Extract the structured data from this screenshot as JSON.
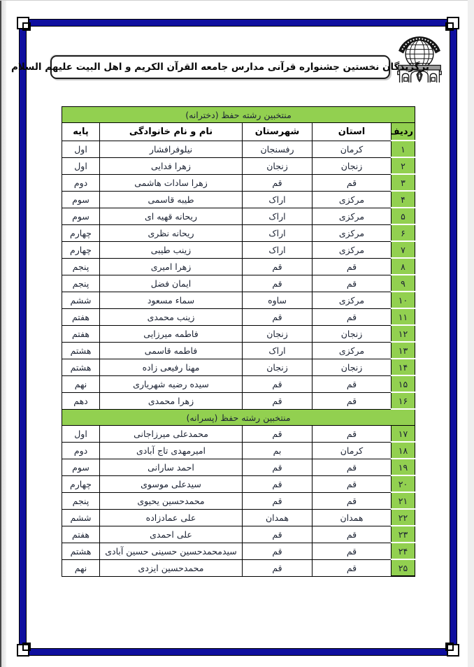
{
  "header": {
    "title": "برگزیدگان نخستین جشنواره قرآنی مدارس جامعه القرآن الکریم و اهل البیت علیهم السلام",
    "logo_icon": "mosque-globe-pen-emblem"
  },
  "colors": {
    "accent_green": "#92d050",
    "frame_navy": "#0f0f9f"
  },
  "table": {
    "columns": {
      "row": "ردیف",
      "province": "استان",
      "city": "شهرستان",
      "name": "نام و نام خانوادگی",
      "grade": "پایه"
    },
    "sections": [
      {
        "title": "منتخبین رشته حفظ (دخترانه)",
        "show_header": true,
        "rows": [
          {
            "row": "۱",
            "province": "کرمان",
            "city": "رفسنجان",
            "name": "نیلوفرافشار",
            "grade": "اول"
          },
          {
            "row": "۲",
            "province": "زنجان",
            "city": "زنجان",
            "name": "زهرا فدایی",
            "grade": "اول"
          },
          {
            "row": "۳",
            "province": "قم",
            "city": "قم",
            "name": "زهرا سادات هاشمی",
            "grade": "دوم"
          },
          {
            "row": "۴",
            "province": "مرکزی",
            "city": "اراک",
            "name": "طیبه قاسمی",
            "grade": "سوم"
          },
          {
            "row": "۵",
            "province": "مرکزی",
            "city": "اراک",
            "name": "ریحانه قهیه ای",
            "grade": "سوم"
          },
          {
            "row": "۶",
            "province": "مرکزی",
            "city": "اراک",
            "name": "ریحانه نظری",
            "grade": "چهارم"
          },
          {
            "row": "۷",
            "province": "مرکزی",
            "city": "اراک",
            "name": "زینب طیبی",
            "grade": "چهارم"
          },
          {
            "row": "۸",
            "province": "قم",
            "city": "قم",
            "name": "زهرا امیری",
            "grade": "پنجم"
          },
          {
            "row": "۹",
            "province": "قم",
            "city": "قم",
            "name": "ایمان فضل",
            "grade": "پنجم"
          },
          {
            "row": "۱۰",
            "province": "مرکزی",
            "city": "ساوه",
            "name": "سماء مسعود",
            "grade": "ششم"
          },
          {
            "row": "۱۱",
            "province": "قم",
            "city": "قم",
            "name": "زینب محمدی",
            "grade": "هفتم"
          },
          {
            "row": "۱۲",
            "province": "زنجان",
            "city": "زنجان",
            "name": "فاطمه میرزایی",
            "grade": "هفتم"
          },
          {
            "row": "۱۳",
            "province": "مرکزی",
            "city": "اراک",
            "name": "فاطمه قاسمی",
            "grade": "هشتم"
          },
          {
            "row": "۱۴",
            "province": "زنجان",
            "city": "زنجان",
            "name": "مهنا رفیعی زاده",
            "grade": "هشتم"
          },
          {
            "row": "۱۵",
            "province": "قم",
            "city": "قم",
            "name": "سیده رضیه شهریاری",
            "grade": "نهم"
          },
          {
            "row": "۱۶",
            "province": "قم",
            "city": "قم",
            "name": "زهرا محمدی",
            "grade": "دهم"
          }
        ]
      },
      {
        "title": "منتخبین رشته حفظ (پسرانه)",
        "show_header": false,
        "rows": [
          {
            "row": "۱۷",
            "province": "قم",
            "city": "قم",
            "name": "محمدعلی میرزاجانی",
            "grade": "اول"
          },
          {
            "row": "۱۸",
            "province": "کرمان",
            "city": "بم",
            "name": "امیرمهدی تاج آبادی",
            "grade": "دوم"
          },
          {
            "row": "۱۹",
            "province": "قم",
            "city": "قم",
            "name": "احمد سارانی",
            "grade": "سوم"
          },
          {
            "row": "۲۰",
            "province": "قم",
            "city": "قم",
            "name": "سیدعلی موسوی",
            "grade": "چهارم"
          },
          {
            "row": "۲۱",
            "province": "قم",
            "city": "قم",
            "name": "محمدحسین یحیوی",
            "grade": "پنجم"
          },
          {
            "row": "۲۲",
            "province": "همدان",
            "city": "همدان",
            "name": "علی عمادزاده",
            "grade": "ششم"
          },
          {
            "row": "۲۳",
            "province": "قم",
            "city": "قم",
            "name": "علی احمدی",
            "grade": "هفتم"
          },
          {
            "row": "۲۴",
            "province": "قم",
            "city": "قم",
            "name": "سیدمحمدحسین حسینی حسین آبادی",
            "grade": "هشتم"
          },
          {
            "row": "۲۵",
            "province": "قم",
            "city": "قم",
            "name": "محمدحسین ایزدی",
            "grade": "نهم"
          }
        ]
      }
    ]
  }
}
